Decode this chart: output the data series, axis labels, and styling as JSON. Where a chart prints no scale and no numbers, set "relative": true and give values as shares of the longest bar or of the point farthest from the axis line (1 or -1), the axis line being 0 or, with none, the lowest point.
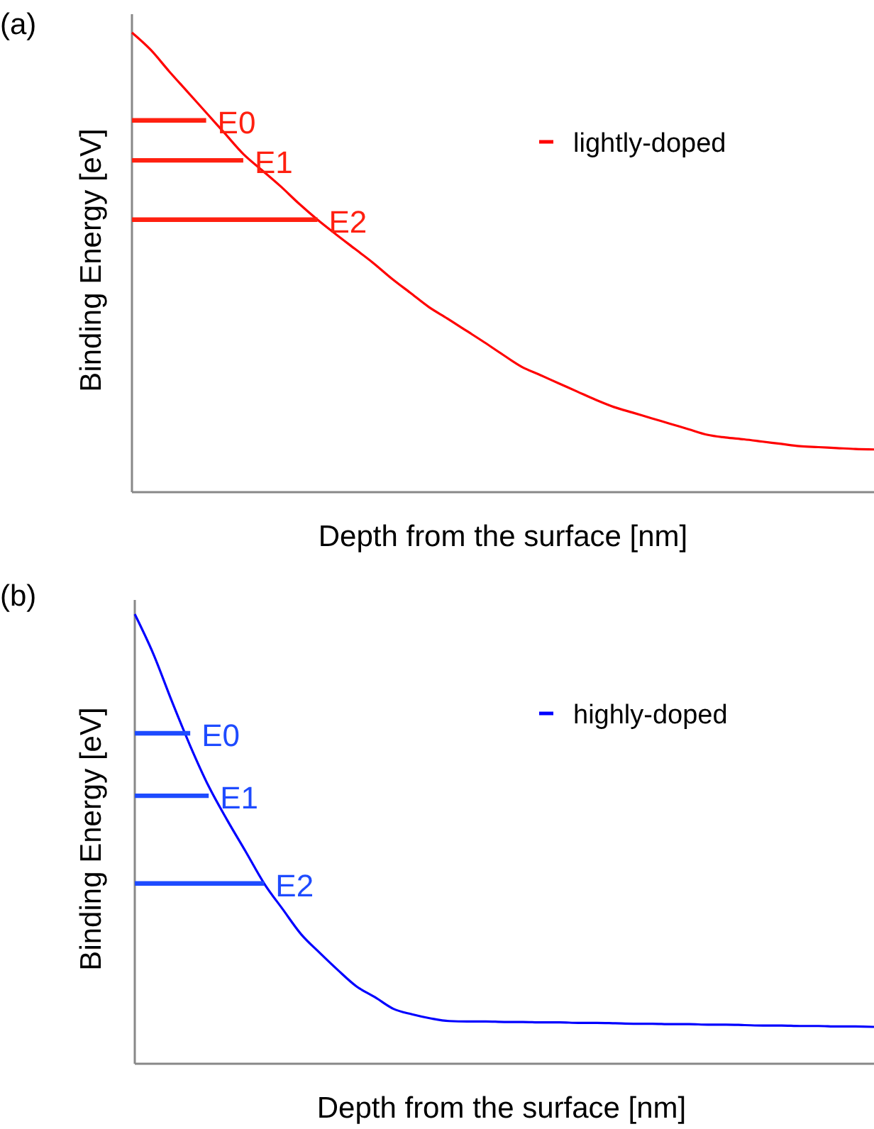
{
  "chart_data": [
    {
      "type": "line",
      "title": "(a)",
      "xlabel": "Depth from the surface [nm]",
      "ylabel": "Binding Energy [eV]",
      "relative": true,
      "legend": "top right",
      "categories": [
        null,
        null,
        null,
        null,
        null,
        null,
        null,
        null,
        null,
        null,
        null,
        null,
        null,
        null,
        null,
        null,
        null,
        null,
        null,
        null,
        null,
        null,
        null,
        null,
        null,
        null,
        null,
        null,
        null,
        null,
        null,
        null,
        null,
        null,
        null,
        null,
        null,
        null,
        null,
        null,
        null
      ],
      "series": [
        {
          "name": "lightly-doped",
          "color": "#ff0000",
          "values": [
            1.0,
            0.963,
            0.916,
            0.871,
            0.826,
            0.781,
            0.736,
            0.701,
            0.666,
            0.628,
            0.593,
            0.561,
            0.53,
            0.499,
            0.465,
            0.434,
            0.403,
            0.378,
            0.352,
            0.326,
            0.299,
            0.273,
            0.255,
            0.237,
            0.219,
            0.201,
            0.185,
            0.173,
            0.161,
            0.149,
            0.137,
            0.125,
            0.119,
            0.115,
            0.11,
            0.105,
            0.1,
            0.098,
            0.096,
            0.094,
            0.093
          ]
        },
        {
          "name": "E0",
          "color": "#ff2010",
          "values": [
            0.809,
            0.809,
            0.809,
            0.809,
            0.809,
            null,
            null,
            null,
            null,
            null,
            null,
            null,
            null,
            null,
            null,
            null,
            null,
            null,
            null,
            null,
            null,
            null,
            null,
            null,
            null,
            null,
            null,
            null,
            null,
            null,
            null,
            null,
            null,
            null,
            null,
            null,
            null,
            null,
            null,
            null,
            null
          ]
        },
        {
          "name": "E1",
          "color": "#ff2010",
          "values": [
            0.722,
            0.722,
            0.722,
            0.722,
            0.722,
            0.722,
            0.722,
            null,
            null,
            null,
            null,
            null,
            null,
            null,
            null,
            null,
            null,
            null,
            null,
            null,
            null,
            null,
            null,
            null,
            null,
            null,
            null,
            null,
            null,
            null,
            null,
            null,
            null,
            null,
            null,
            null,
            null,
            null,
            null,
            null,
            null
          ]
        },
        {
          "name": "E2",
          "color": "#ff2010",
          "values": [
            0.593,
            0.593,
            0.593,
            0.593,
            0.593,
            0.593,
            0.593,
            0.593,
            0.593,
            0.593,
            0.593,
            null,
            null,
            null,
            null,
            null,
            null,
            null,
            null,
            null,
            null,
            null,
            null,
            null,
            null,
            null,
            null,
            null,
            null,
            null,
            null,
            null,
            null,
            null,
            null,
            null,
            null,
            null,
            null,
            null,
            null
          ]
        }
      ]
    },
    {
      "type": "line",
      "title": "(b)",
      "xlabel": "Depth from the surface [nm]",
      "ylabel": "Binding Energy [eV]",
      "relative": true,
      "legend": "top right",
      "categories": [
        null,
        null,
        null,
        null,
        null,
        null,
        null,
        null,
        null,
        null,
        null,
        null,
        null,
        null,
        null,
        null,
        null,
        null,
        null,
        null,
        null,
        null,
        null,
        null,
        null,
        null,
        null,
        null,
        null,
        null,
        null,
        null,
        null,
        null,
        null,
        null,
        null,
        null,
        null,
        null,
        null
      ],
      "series": [
        {
          "name": "highly-doped",
          "color": "#0000ff",
          "values": [
            1.0,
            0.912,
            0.807,
            0.707,
            0.617,
            0.542,
            0.472,
            0.401,
            0.344,
            0.288,
            0.247,
            0.208,
            0.172,
            0.148,
            0.122,
            0.11,
            0.101,
            0.095,
            0.094,
            0.094,
            0.093,
            0.093,
            0.092,
            0.092,
            0.091,
            0.091,
            0.09,
            0.089,
            0.089,
            0.088,
            0.088,
            0.087,
            0.087,
            0.086,
            0.085,
            0.085,
            0.084,
            0.084,
            0.083,
            0.083,
            0.082
          ]
        },
        {
          "name": "E0",
          "color": "#1e4bff",
          "values": [
            0.735,
            0.735,
            0.735,
            0.735,
            null,
            null,
            null,
            null,
            null,
            null,
            null,
            null,
            null,
            null,
            null,
            null,
            null,
            null,
            null,
            null,
            null,
            null,
            null,
            null,
            null,
            null,
            null,
            null,
            null,
            null,
            null,
            null,
            null,
            null,
            null,
            null,
            null,
            null,
            null,
            null,
            null
          ]
        },
        {
          "name": "E1",
          "color": "#1e4bff",
          "values": [
            0.596,
            0.596,
            0.596,
            0.596,
            0.596,
            null,
            null,
            null,
            null,
            null,
            null,
            null,
            null,
            null,
            null,
            null,
            null,
            null,
            null,
            null,
            null,
            null,
            null,
            null,
            null,
            null,
            null,
            null,
            null,
            null,
            null,
            null,
            null,
            null,
            null,
            null,
            null,
            null,
            null,
            null,
            null
          ]
        },
        {
          "name": "E2",
          "color": "#1e4bff",
          "values": [
            0.401,
            0.401,
            0.401,
            0.401,
            0.401,
            0.401,
            0.401,
            0.401,
            null,
            null,
            null,
            null,
            null,
            null,
            null,
            null,
            null,
            null,
            null,
            null,
            null,
            null,
            null,
            null,
            null,
            null,
            null,
            null,
            null,
            null,
            null,
            null,
            null,
            null,
            null,
            null,
            null,
            null,
            null,
            null,
            null
          ]
        }
      ]
    }
  ]
}
